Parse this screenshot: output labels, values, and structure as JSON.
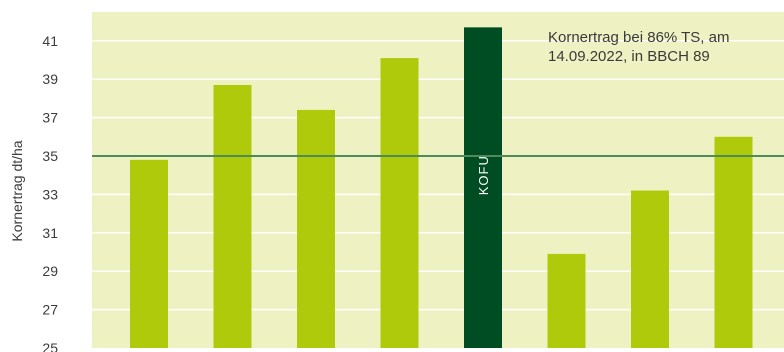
{
  "chart_data": {
    "type": "bar",
    "ylabel": "Kornertrag dt/ha",
    "ylim": [
      25,
      42.5
    ],
    "yticks": [
      25,
      27,
      29,
      31,
      33,
      35,
      37,
      39,
      41
    ],
    "grid": true,
    "categories": [
      "",
      "",
      "",
      "",
      "",
      "",
      "",
      ""
    ],
    "values": [
      34.8,
      38.7,
      37.4,
      40.1,
      41.7,
      29.9,
      33.2,
      36.0
    ],
    "bar_labels": [
      "",
      "",
      "",
      "",
      "KOFU",
      "",
      "",
      ""
    ],
    "highlight_index": 4,
    "reference_line": 35,
    "annotation_lines": [
      "Kornertrag bei 86% TS, am",
      "14.09.2022, in BBCH 89"
    ],
    "colors": {
      "plot_background": "#eef2c2",
      "gridline": "#ffffff",
      "bar": "#afca0b",
      "highlight_bar": "#004d24",
      "reference_line": "#4f8a5c"
    }
  }
}
